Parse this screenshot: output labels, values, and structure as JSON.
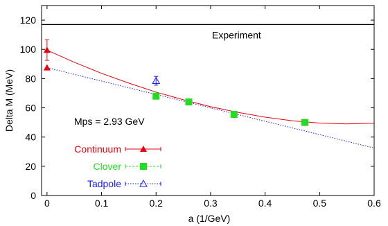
{
  "chart_data": {
    "type": "scatter",
    "xlabel": "a (1/GeV)",
    "ylabel": "Delta M (MeV)",
    "xlim": [
      -0.01,
      0.6
    ],
    "ylim": [
      0,
      130
    ],
    "xticks": [
      0,
      0.1,
      0.2,
      0.3,
      0.4,
      0.5,
      0.6
    ],
    "yticks": [
      0,
      20,
      40,
      60,
      80,
      100,
      120
    ],
    "xtick_labels": [
      "0",
      "0.1",
      "0.2",
      "0.3",
      "0.4",
      "0.5",
      "0.6"
    ],
    "ytick_labels": [
      "0",
      "20",
      "40",
      "60",
      "80",
      "100",
      "120"
    ],
    "grid": false,
    "annotations": {
      "experiment": "Experiment",
      "mps": "Mps = 2.93 GeV"
    },
    "experiment_value": 117,
    "legend_placement": "bottom-left",
    "series": [
      {
        "name": "Continuum",
        "color": "#e8000b",
        "marker": "filled-triangle",
        "points": [
          {
            "x": 0.0,
            "y": 99.5,
            "err": 7
          },
          {
            "x": 0.0,
            "y": 87.5,
            "err": 0
          }
        ]
      },
      {
        "name": "Clover",
        "color": "#22dd22",
        "marker": "filled-square",
        "points": [
          {
            "x": 0.2,
            "y": 68
          },
          {
            "x": 0.26,
            "y": 64
          },
          {
            "x": 0.343,
            "y": 55.5
          },
          {
            "x": 0.473,
            "y": 50
          }
        ]
      },
      {
        "name": "Tadpole",
        "color": "#1a1aff",
        "marker": "open-triangle",
        "points": [
          {
            "x": 0.2,
            "y": 78.5,
            "err": 3
          }
        ]
      }
    ],
    "fits": [
      {
        "series": "Continuum",
        "style": "solid",
        "color": "#e8000b",
        "curve": [
          [
            0,
            99.5
          ],
          [
            0.05,
            91.2
          ],
          [
            0.1,
            83.6
          ],
          [
            0.15,
            76.9
          ],
          [
            0.2,
            70.8
          ],
          [
            0.25,
            65.5
          ],
          [
            0.3,
            60.8
          ],
          [
            0.35,
            56.9
          ],
          [
            0.4,
            53.6
          ],
          [
            0.45,
            51.1
          ],
          [
            0.5,
            49.6
          ],
          [
            0.55,
            49.0
          ],
          [
            0.6,
            49.5
          ]
        ]
      },
      {
        "series": "Tadpole",
        "style": "dotted",
        "color": "#1a1aff",
        "curve": [
          [
            0,
            87.5
          ],
          [
            0.6,
            32.5
          ]
        ]
      }
    ]
  }
}
